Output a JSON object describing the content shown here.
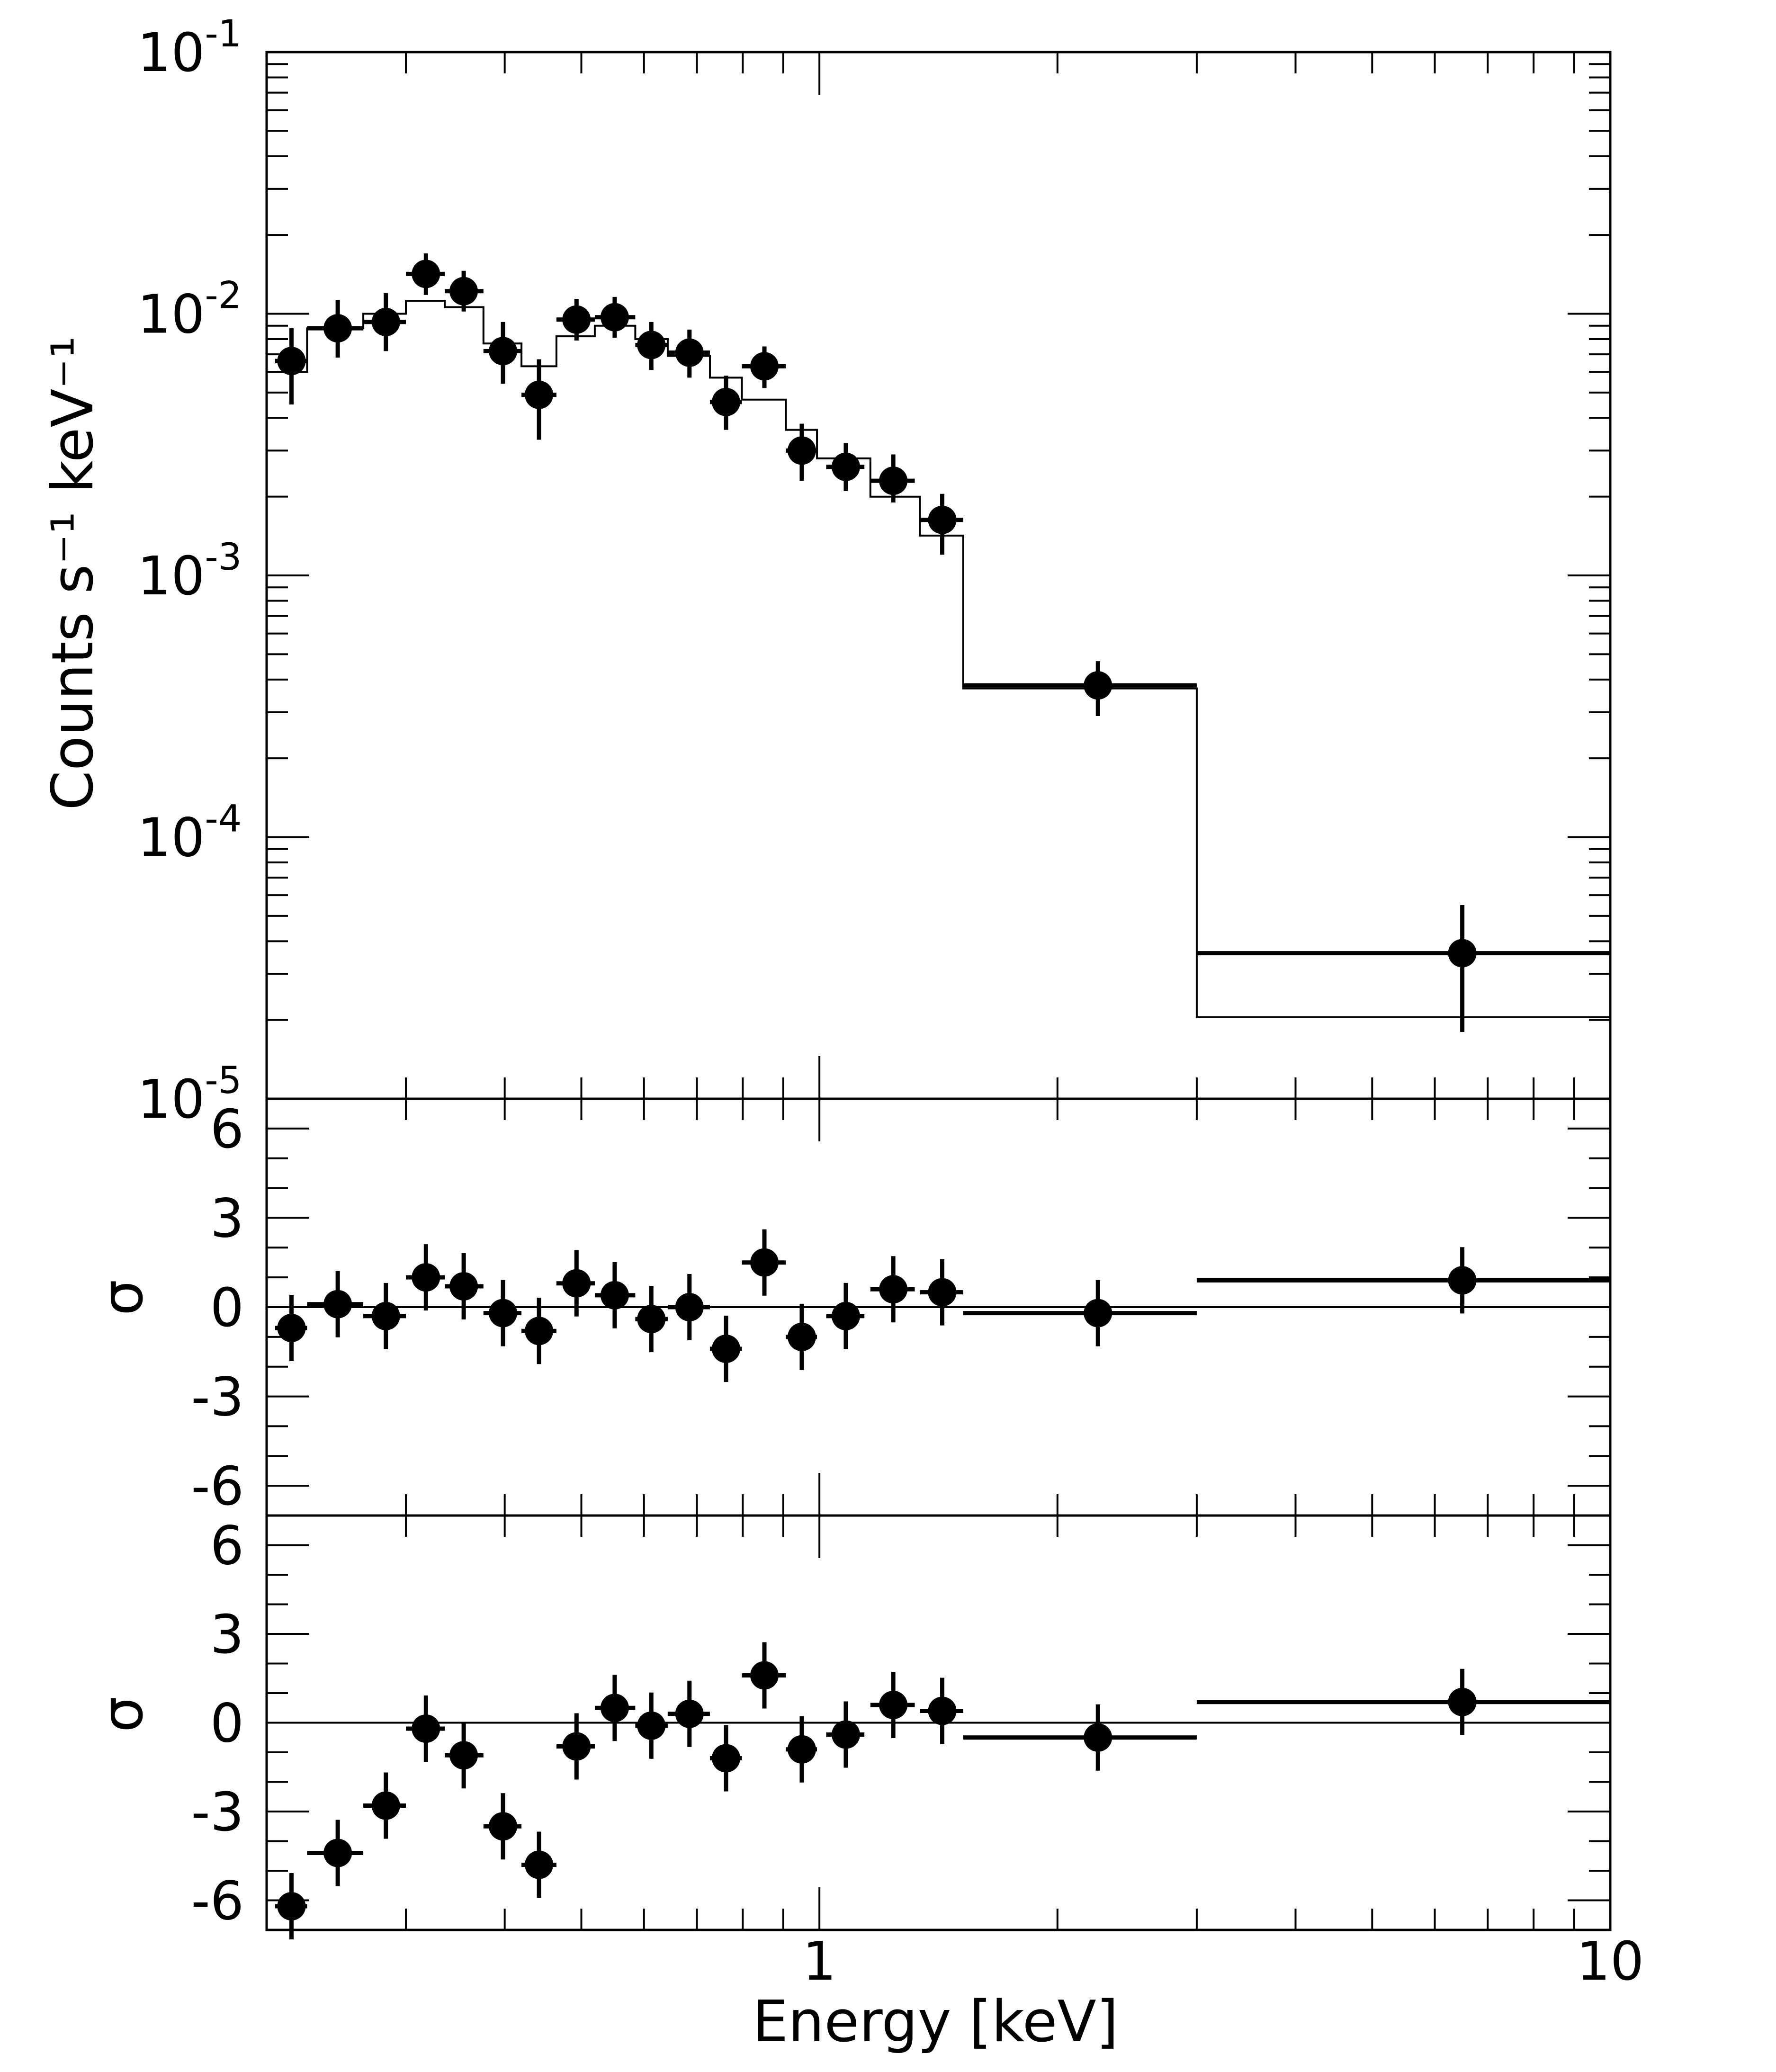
{
  "chart_data": {
    "type": "scatter",
    "x_scale": "log",
    "xlim": [
      0.2,
      10
    ],
    "xlabel": "Energy  [keV]",
    "x_tick_labels": [
      {
        "value": 1,
        "label": "1"
      },
      {
        "value": 10,
        "label": "10"
      }
    ],
    "panels": [
      {
        "id": "spectrum",
        "ylabel": "Counts s⁻¹ keV⁻¹",
        "y_scale": "log",
        "ylim": [
          1e-05,
          0.1
        ],
        "y_tick_labels": [
          {
            "value": 0.1,
            "base": "10",
            "exp": "-1"
          },
          {
            "value": 0.01,
            "base": "10",
            "exp": "-2"
          },
          {
            "value": 0.001,
            "base": "10",
            "exp": "-3"
          },
          {
            "value": 0.0001,
            "base": "10",
            "exp": "-4"
          },
          {
            "value": 1e-05,
            "base": "10",
            "exp": "-5"
          }
        ],
        "data": [
          {
            "x": 0.215,
            "xlo": 0.205,
            "xhi": 0.225,
            "y": 0.0066,
            "ylo": 0.0045,
            "yhi": 0.0088
          },
          {
            "x": 0.246,
            "xlo": 0.225,
            "xhi": 0.265,
            "y": 0.0088,
            "ylo": 0.0068,
            "yhi": 0.0113
          },
          {
            "x": 0.283,
            "xlo": 0.265,
            "xhi": 0.3,
            "y": 0.0093,
            "ylo": 0.0072,
            "yhi": 0.012
          },
          {
            "x": 0.318,
            "xlo": 0.3,
            "xhi": 0.336,
            "y": 0.0142,
            "ylo": 0.0118,
            "yhi": 0.017
          },
          {
            "x": 0.355,
            "xlo": 0.336,
            "xhi": 0.376,
            "y": 0.0122,
            "ylo": 0.0102,
            "yhi": 0.0146
          },
          {
            "x": 0.398,
            "xlo": 0.376,
            "xhi": 0.42,
            "y": 0.0072,
            "ylo": 0.0054,
            "yhi": 0.0093
          },
          {
            "x": 0.442,
            "xlo": 0.42,
            "xhi": 0.465,
            "y": 0.0049,
            "ylo": 0.0033,
            "yhi": 0.0067
          },
          {
            "x": 0.493,
            "xlo": 0.465,
            "xhi": 0.52,
            "y": 0.0095,
            "ylo": 0.0079,
            "yhi": 0.0114
          },
          {
            "x": 0.551,
            "xlo": 0.52,
            "xhi": 0.585,
            "y": 0.0097,
            "ylo": 0.0081,
            "yhi": 0.0116
          },
          {
            "x": 0.613,
            "xlo": 0.585,
            "xhi": 0.643,
            "y": 0.0076,
            "ylo": 0.0061,
            "yhi": 0.0093
          },
          {
            "x": 0.685,
            "xlo": 0.643,
            "xhi": 0.727,
            "y": 0.0071,
            "ylo": 0.0057,
            "yhi": 0.0087
          },
          {
            "x": 0.762,
            "xlo": 0.727,
            "xhi": 0.798,
            "y": 0.0046,
            "ylo": 0.0036,
            "yhi": 0.0058
          },
          {
            "x": 0.852,
            "xlo": 0.798,
            "xhi": 0.907,
            "y": 0.0063,
            "ylo": 0.0052,
            "yhi": 0.0075
          },
          {
            "x": 0.95,
            "xlo": 0.907,
            "xhi": 0.993,
            "y": 0.003,
            "ylo": 0.0023,
            "yhi": 0.0038
          },
          {
            "x": 1.08,
            "xlo": 1.02,
            "xhi": 1.14,
            "y": 0.0026,
            "ylo": 0.0021,
            "yhi": 0.0032
          },
          {
            "x": 1.24,
            "xlo": 1.16,
            "xhi": 1.32,
            "y": 0.0023,
            "ylo": 0.0019,
            "yhi": 0.0029
          },
          {
            "x": 1.43,
            "xlo": 1.34,
            "xhi": 1.52,
            "y": 0.00163,
            "ylo": 0.0012,
            "yhi": 0.00205
          },
          {
            "x": 2.25,
            "xlo": 1.52,
            "xhi": 3.0,
            "y": 0.00038,
            "ylo": 0.00029,
            "yhi": 0.00047
          },
          {
            "x": 6.5,
            "xlo": 3.0,
            "xhi": 10.0,
            "y": 3.6e-05,
            "ylo": 1.8e-05,
            "yhi": 5.5e-05
          }
        ],
        "model_steps": [
          {
            "x0": 0.2,
            "x1": 0.225,
            "y": 0.006
          },
          {
            "x0": 0.225,
            "x1": 0.265,
            "y": 0.0088
          },
          {
            "x0": 0.265,
            "x1": 0.3,
            "y": 0.01
          },
          {
            "x0": 0.3,
            "x1": 0.336,
            "y": 0.0112
          },
          {
            "x0": 0.336,
            "x1": 0.376,
            "y": 0.0106
          },
          {
            "x0": 0.376,
            "x1": 0.42,
            "y": 0.0077
          },
          {
            "x0": 0.42,
            "x1": 0.465,
            "y": 0.0063
          },
          {
            "x0": 0.465,
            "x1": 0.52,
            "y": 0.0082
          },
          {
            "x0": 0.52,
            "x1": 0.585,
            "y": 0.009
          },
          {
            "x0": 0.585,
            "x1": 0.643,
            "y": 0.008
          },
          {
            "x0": 0.643,
            "x1": 0.727,
            "y": 0.0069
          },
          {
            "x0": 0.727,
            "x1": 0.798,
            "y": 0.0057
          },
          {
            "x0": 0.798,
            "x1": 0.907,
            "y": 0.0047
          },
          {
            "x0": 0.907,
            "x1": 0.993,
            "y": 0.0036
          },
          {
            "x0": 0.993,
            "x1": 1.16,
            "y": 0.0028
          },
          {
            "x0": 1.16,
            "x1": 1.34,
            "y": 0.002
          },
          {
            "x0": 1.34,
            "x1": 1.52,
            "y": 0.00142
          },
          {
            "x0": 1.52,
            "x1": 3.0,
            "y": 0.00037
          },
          {
            "x0": 3.0,
            "x1": 10.0,
            "y": 2.05e-05
          }
        ]
      },
      {
        "id": "residuals-1",
        "ylabel": "σ",
        "y_scale": "linear",
        "ylim": [
          -7,
          7
        ],
        "y_tick_labels": [
          {
            "value": 6,
            "label": "6"
          },
          {
            "value": 3,
            "label": "3"
          },
          {
            "value": 0,
            "label": "0"
          },
          {
            "value": -3,
            "label": "-3"
          },
          {
            "value": -6,
            "label": "-6"
          }
        ],
        "data": [
          {
            "x": 0.215,
            "xlo": 0.205,
            "xhi": 0.225,
            "y": -0.7
          },
          {
            "x": 0.246,
            "xlo": 0.225,
            "xhi": 0.265,
            "y": 0.1
          },
          {
            "x": 0.283,
            "xlo": 0.265,
            "xhi": 0.3,
            "y": -0.3
          },
          {
            "x": 0.318,
            "xlo": 0.3,
            "xhi": 0.336,
            "y": 1.0
          },
          {
            "x": 0.355,
            "xlo": 0.336,
            "xhi": 0.376,
            "y": 0.7
          },
          {
            "x": 0.398,
            "xlo": 0.376,
            "xhi": 0.42,
            "y": -0.2
          },
          {
            "x": 0.442,
            "xlo": 0.42,
            "xhi": 0.465,
            "y": -0.8
          },
          {
            "x": 0.493,
            "xlo": 0.465,
            "xhi": 0.52,
            "y": 0.8
          },
          {
            "x": 0.551,
            "xlo": 0.52,
            "xhi": 0.585,
            "y": 0.4
          },
          {
            "x": 0.613,
            "xlo": 0.585,
            "xhi": 0.643,
            "y": -0.4
          },
          {
            "x": 0.685,
            "xlo": 0.643,
            "xhi": 0.727,
            "y": 0.0
          },
          {
            "x": 0.762,
            "xlo": 0.727,
            "xhi": 0.798,
            "y": -1.4
          },
          {
            "x": 0.852,
            "xlo": 0.798,
            "xhi": 0.907,
            "y": 1.5
          },
          {
            "x": 0.95,
            "xlo": 0.907,
            "xhi": 0.993,
            "y": -1.0
          },
          {
            "x": 1.08,
            "xlo": 1.02,
            "xhi": 1.14,
            "y": -0.3
          },
          {
            "x": 1.24,
            "xlo": 1.16,
            "xhi": 1.32,
            "y": 0.6
          },
          {
            "x": 1.43,
            "xlo": 1.34,
            "xhi": 1.52,
            "y": 0.5
          },
          {
            "x": 2.25,
            "xlo": 1.52,
            "xhi": 3.0,
            "y": -0.2
          },
          {
            "x": 6.5,
            "xlo": 3.0,
            "xhi": 10.0,
            "y": 0.9
          }
        ]
      },
      {
        "id": "residuals-2",
        "ylabel": "σ",
        "y_scale": "linear",
        "ylim": [
          -7,
          7
        ],
        "y_tick_labels": [
          {
            "value": 6,
            "label": "6"
          },
          {
            "value": 3,
            "label": "3"
          },
          {
            "value": 0,
            "label": "0"
          },
          {
            "value": -3,
            "label": "-3"
          },
          {
            "value": -6,
            "label": "-6"
          }
        ],
        "data": [
          {
            "x": 0.215,
            "xlo": 0.205,
            "xhi": 0.225,
            "y": -6.2
          },
          {
            "x": 0.246,
            "xlo": 0.225,
            "xhi": 0.265,
            "y": -4.4
          },
          {
            "x": 0.283,
            "xlo": 0.265,
            "xhi": 0.3,
            "y": -2.8
          },
          {
            "x": 0.318,
            "xlo": 0.3,
            "xhi": 0.336,
            "y": -0.2
          },
          {
            "x": 0.355,
            "xlo": 0.336,
            "xhi": 0.376,
            "y": -1.1
          },
          {
            "x": 0.398,
            "xlo": 0.376,
            "xhi": 0.42,
            "y": -3.5
          },
          {
            "x": 0.442,
            "xlo": 0.42,
            "xhi": 0.465,
            "y": -4.8
          },
          {
            "x": 0.493,
            "xlo": 0.465,
            "xhi": 0.52,
            "y": -0.8
          },
          {
            "x": 0.551,
            "xlo": 0.52,
            "xhi": 0.585,
            "y": 0.5
          },
          {
            "x": 0.613,
            "xlo": 0.585,
            "xhi": 0.643,
            "y": -0.1
          },
          {
            "x": 0.685,
            "xlo": 0.643,
            "xhi": 0.727,
            "y": 0.3
          },
          {
            "x": 0.762,
            "xlo": 0.727,
            "xhi": 0.798,
            "y": -1.2
          },
          {
            "x": 0.852,
            "xlo": 0.798,
            "xhi": 0.907,
            "y": 1.6
          },
          {
            "x": 0.95,
            "xlo": 0.907,
            "xhi": 0.993,
            "y": -0.9
          },
          {
            "x": 1.08,
            "xlo": 1.02,
            "xhi": 1.14,
            "y": -0.4
          },
          {
            "x": 1.24,
            "xlo": 1.16,
            "xhi": 1.32,
            "y": 0.6
          },
          {
            "x": 1.43,
            "xlo": 1.34,
            "xhi": 1.52,
            "y": 0.4
          },
          {
            "x": 2.25,
            "xlo": 1.52,
            "xhi": 3.0,
            "y": -0.5
          },
          {
            "x": 6.5,
            "xlo": 3.0,
            "xhi": 10.0,
            "y": 0.7
          }
        ]
      }
    ]
  }
}
